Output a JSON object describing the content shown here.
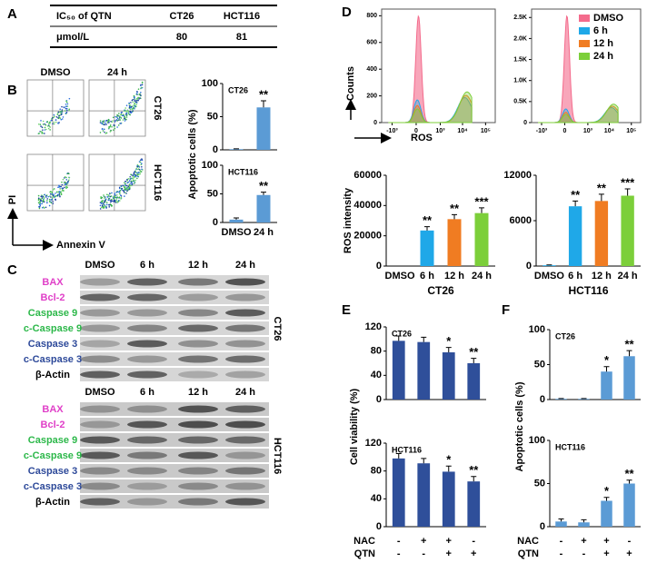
{
  "panel_labels": [
    "A",
    "B",
    "C",
    "D",
    "E",
    "F"
  ],
  "table": {
    "header": [
      "IC₅₀ of QTN",
      "CT26",
      "HCT116"
    ],
    "rows": [
      [
        "μmol/L",
        80,
        81
      ]
    ]
  },
  "flow": {
    "columns": [
      "DMSO",
      "24 h"
    ],
    "rows": [
      "CT26",
      "HCT116"
    ],
    "x_label": "Annexin V",
    "y_label": "PI"
  },
  "blots": {
    "columns": [
      "DMSO",
      "6 h",
      "12 h",
      "24 h"
    ],
    "blocks": [
      {
        "name": "CT26",
        "rows": [
          {
            "label": "BAX",
            "color": "#e040c8"
          },
          {
            "label": "Bcl-2",
            "color": "#e040c8"
          },
          {
            "label": "Caspase 9",
            "color": "#2db84a"
          },
          {
            "label": "c-Caspase 9",
            "color": "#2db84a"
          },
          {
            "label": "Caspase 3",
            "color": "#2e4a9a"
          },
          {
            "label": "c-Caspase 3",
            "color": "#2e4a9a"
          },
          {
            "label": "β-Actin",
            "color": "#000000"
          }
        ]
      },
      {
        "name": "HCT116",
        "rows": [
          {
            "label": "BAX",
            "color": "#e040c8"
          },
          {
            "label": "Bcl-2",
            "color": "#e040c8"
          },
          {
            "label": "Caspase 9",
            "color": "#2db84a"
          },
          {
            "label": "c-Caspase 9",
            "color": "#2db84a"
          },
          {
            "label": "Caspase 3",
            "color": "#2e4a9a"
          },
          {
            "label": "c-Caspase 3",
            "color": "#2e4a9a"
          },
          {
            "label": "β-Actin",
            "color": "#000000"
          }
        ]
      }
    ]
  },
  "treatments": {
    "rows": [
      {
        "name": "NAC",
        "signs": [
          "-",
          "+",
          "+",
          "-"
        ]
      },
      {
        "name": "QTN",
        "signs": [
          "-",
          "-",
          "+",
          "+"
        ]
      }
    ]
  },
  "chart_data": [
    {
      "type": "bar",
      "subtitle": "CT26",
      "y_label": "Apoptotic cells (%)",
      "categories": [
        null,
        null
      ],
      "values": [
        1,
        64
      ],
      "errors": [
        0.5,
        10
      ],
      "color": "#5b9bd5",
      "ylim": [
        0,
        100
      ],
      "yticks": [
        0,
        50,
        100
      ],
      "stars": [
        null,
        "**"
      ]
    },
    {
      "type": "bar",
      "subtitle": "HCT116",
      "categories": [
        "DMSO",
        "24 h"
      ],
      "values": [
        5,
        48
      ],
      "errors": [
        3,
        5
      ],
      "color": "#5b9bd5",
      "ylim": [
        0,
        100
      ],
      "yticks": [
        0,
        50,
        100
      ],
      "stars": [
        null,
        "**"
      ]
    },
    {
      "type": "density",
      "y_label": "Counts",
      "x_label": "ROS",
      "xlim": [
        -3000,
        262144
      ],
      "xticks": [
        {
          "value": -1000,
          "label": "-10³"
        },
        0,
        {
          "value": 1000,
          "label": "10³"
        },
        {
          "value": 10000,
          "label": "10⁴"
        },
        {
          "value": 100000,
          "label": "10⁵"
        }
      ],
      "ylim": [
        0,
        850
      ],
      "yticks": [
        0,
        200,
        400,
        600,
        800
      ]
    },
    {
      "type": "density",
      "xlim": [
        -3000,
        262144
      ],
      "xticks": [
        {
          "value": -1000,
          "label": "-10³"
        },
        0,
        {
          "value": 1000,
          "label": "10³"
        },
        {
          "value": 10000,
          "label": "10⁴"
        },
        {
          "value": 100000,
          "label": "10⁵"
        }
      ],
      "ylim": [
        0,
        2700
      ],
      "yticks": [
        0,
        {
          "value": 500,
          "label": "0.5K"
        },
        {
          "value": 1000,
          "label": "1.0K"
        },
        {
          "value": 1500,
          "label": "1.5K"
        },
        {
          "value": 2000,
          "label": "2.0K"
        },
        {
          "value": 2500,
          "label": "2.5K"
        }
      ],
      "series": [
        {
          "name": "DMSO",
          "color": "#f46b8c"
        },
        {
          "name": "6 h",
          "color": "#1fa8e8"
        },
        {
          "name": "12 h",
          "color": "#f07c22"
        },
        {
          "name": "24 h",
          "color": "#7ccf3a"
        }
      ]
    },
    {
      "type": "bar",
      "y_label": "ROS intensity",
      "x_label": "CT26",
      "categories": [
        "DMSO",
        "6 h",
        "12 h",
        "24 h"
      ],
      "values": [
        0,
        23500,
        31000,
        35000
      ],
      "errors": [
        0,
        2500,
        3000,
        3500
      ],
      "colors": [
        "#1fa8e8",
        "#1fa8e8",
        "#f07c22",
        "#7ccf3a"
      ],
      "ylim": [
        0,
        60000
      ],
      "yticks": [
        0,
        20000,
        40000,
        60000
      ],
      "stars": [
        null,
        "**",
        "**",
        "***"
      ]
    },
    {
      "type": "bar",
      "x_label": "HCT116",
      "categories": [
        "DMSO",
        "6 h",
        "12 h",
        "24 h"
      ],
      "values": [
        100,
        7900,
        8600,
        9300
      ],
      "errors": [
        50,
        700,
        900,
        900
      ],
      "colors": [
        "#1fa8e8",
        "#1fa8e8",
        "#f07c22",
        "#7ccf3a"
      ],
      "ylim": [
        0,
        12000
      ],
      "yticks": [
        0,
        6000,
        12000
      ],
      "stars": [
        null,
        "**",
        "**",
        "***"
      ]
    },
    {
      "type": "bar",
      "subtitle": "CT26",
      "y_label": "Cell viability (%)",
      "categories": [
        null,
        null,
        null,
        null
      ],
      "values": [
        97,
        95,
        78,
        60
      ],
      "errors": [
        8,
        8,
        8,
        8
      ],
      "color": "#2f4f9a",
      "ylim": [
        0,
        120
      ],
      "yticks": [
        0,
        40,
        80,
        120
      ],
      "stars": [
        null,
        null,
        "*",
        "**"
      ]
    },
    {
      "type": "bar",
      "subtitle": "HCT116",
      "categories": [
        null,
        null,
        null,
        null
      ],
      "values": [
        98,
        91,
        79,
        65
      ],
      "errors": [
        7,
        7,
        8,
        7
      ],
      "color": "#2f4f9a",
      "ylim": [
        0,
        120
      ],
      "yticks": [
        0,
        40,
        80,
        120
      ],
      "stars": [
        null,
        null,
        "*",
        "**"
      ]
    },
    {
      "type": "bar",
      "subtitle": "CT26",
      "y_label": "Apoptotic cells (%)",
      "categories": [
        null,
        null,
        null,
        null
      ],
      "values": [
        1,
        1,
        40,
        62
      ],
      "errors": [
        0.5,
        0.5,
        7,
        8
      ],
      "color": "#5b9bd5",
      "ylim": [
        0,
        100
      ],
      "yticks": [
        0,
        50,
        100
      ],
      "stars": [
        null,
        null,
        "*",
        "**"
      ]
    },
    {
      "type": "bar",
      "subtitle": "HCT116",
      "categories": [
        null,
        null,
        null,
        null
      ],
      "values": [
        6,
        5,
        30,
        50
      ],
      "errors": [
        3,
        3,
        4,
        4
      ],
      "color": "#5b9bd5",
      "ylim": [
        0,
        100
      ],
      "yticks": [
        0,
        50,
        100
      ],
      "stars": [
        null,
        null,
        "*",
        "**"
      ]
    }
  ]
}
